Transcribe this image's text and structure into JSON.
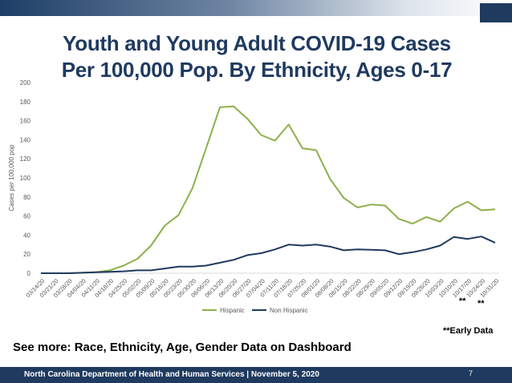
{
  "slide": {
    "title_line1": "Youth and Young Adult COVID-19 Cases",
    "title_line2": "Per 100,000 Pop. By Ethnicity, Ages 0-17",
    "early_data_note": "**Early Data",
    "see_more": "See more: Race, Ethnicity, Age, Gender Data on Dashboard",
    "footer": "North Carolina Department of Health and Human Services | November 5, 2020",
    "slide_number": "7"
  },
  "colors": {
    "hispanic": "#8db04a",
    "non_hispanic": "#1f3a5f",
    "title": "#1f3a5f",
    "footer_bar": "#1f3a5f"
  },
  "chart_data": {
    "type": "line",
    "title": "",
    "xlabel": "",
    "ylabel": "Cases per 100,000 pop",
    "ylim": [
      0,
      200
    ],
    "yticks": [
      0,
      20,
      40,
      60,
      80,
      100,
      120,
      140,
      160,
      180,
      200
    ],
    "grid": false,
    "legend": "bottom",
    "categories": [
      "03/14/20",
      "03/21/20",
      "03/28/20",
      "04/04/20",
      "04/11/20",
      "04/18/20",
      "04/25/20",
      "05/02/20",
      "05/09/20",
      "05/16/20",
      "05/23/20",
      "05/30/20",
      "06/06/20",
      "06/13/20",
      "06/20/20",
      "06/27/20",
      "07/04/20",
      "07/11/20",
      "07/18/20",
      "07/25/20",
      "08/01/20",
      "08/08/20",
      "08/15/20",
      "08/22/20",
      "08/29/20",
      "09/05/20",
      "09/12/20",
      "09/19/20",
      "09/26/20",
      "10/03/20",
      "10/10/20",
      "10/17/20",
      "10/24/20",
      "10/31/20"
    ],
    "early_data_markers": [
      {
        "category": "10/24/20",
        "label": "**"
      },
      {
        "category": "10/31/20",
        "label": "**"
      }
    ],
    "series": [
      {
        "name": "Hispanic",
        "color": "#8db04a",
        "values": [
          0,
          0,
          0,
          0.5,
          1,
          3,
          8,
          15,
          29,
          50,
          61,
          89,
          131,
          174,
          175,
          162,
          145,
          139,
          156,
          131,
          129,
          99,
          79,
          69,
          72,
          71,
          57,
          52,
          59,
          54,
          68,
          75,
          66,
          67
        ]
      },
      {
        "name": "Non Hispanic",
        "color": "#1f3a5f",
        "values": [
          0,
          0,
          0,
          0.5,
          1,
          1.5,
          2,
          3,
          3,
          5,
          7,
          7,
          8,
          11,
          14,
          19,
          21,
          25,
          30,
          29,
          30,
          28,
          24,
          25,
          24.5,
          24,
          20,
          22,
          25,
          29,
          38,
          36,
          38.5,
          32
        ]
      }
    ]
  }
}
